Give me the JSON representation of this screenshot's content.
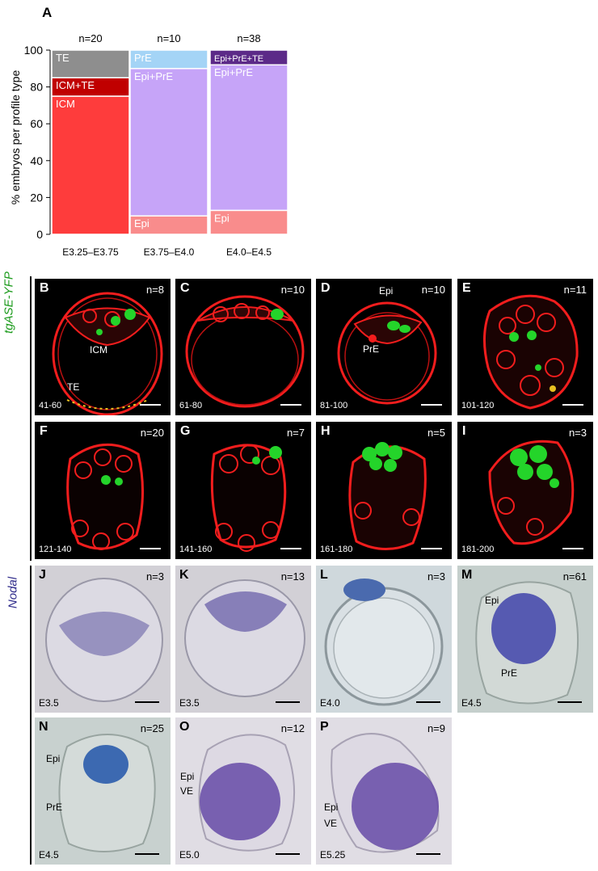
{
  "panel_a": {
    "letter": "A",
    "ylabel": "% embryos per profile type",
    "yticks": [
      "0",
      "20",
      "40",
      "60",
      "80",
      "100"
    ],
    "colors": {
      "TE": "#8e8e8e",
      "ICM+TE": "#c00000",
      "ICM": "#fe3c3c",
      "PrE": "#a4d4f6",
      "Epi+PrE": "#c6a4f8",
      "Epi": "#f98c8c",
      "Epi+PrE+TE": "#5c2a88"
    }
  },
  "chart_data": {
    "type": "bar",
    "stacked": true,
    "categories": [
      "E3.25–E3.75",
      "E3.75–E4.0",
      "E4.0–E4.5"
    ],
    "n_labels": [
      "n=20",
      "n=10",
      "n=38"
    ],
    "ylabel": "% embryos per profile type",
    "ylim": [
      0,
      100
    ],
    "grid": false,
    "series": [
      {
        "name": "ICM",
        "values": [
          75,
          0,
          0
        ],
        "color": "#fe3c3c"
      },
      {
        "name": "ICM+TE",
        "values": [
          10,
          0,
          0
        ],
        "color": "#c00000"
      },
      {
        "name": "TE",
        "values": [
          15,
          0,
          0
        ],
        "color": "#8e8e8e"
      },
      {
        "name": "Epi",
        "values": [
          0,
          10,
          13
        ],
        "color": "#f98c8c"
      },
      {
        "name": "Epi+PrE",
        "values": [
          0,
          80,
          79
        ],
        "color": "#c6a4f8"
      },
      {
        "name": "PrE",
        "values": [
          0,
          10,
          0
        ],
        "color": "#a4d4f6"
      },
      {
        "name": "Epi+PrE+TE",
        "values": [
          0,
          0,
          8
        ],
        "color": "#5c2a88"
      }
    ]
  },
  "side_labels": {
    "yfp": "tgASE-YFP",
    "nodal": "Nodal"
  },
  "yfp_panels": [
    {
      "letter": "B",
      "n": "n=8",
      "range": "41-60"
    },
    {
      "letter": "C",
      "n": "n=10",
      "range": "61-80"
    },
    {
      "letter": "D",
      "n": "n=10",
      "range": "81-100"
    },
    {
      "letter": "E",
      "n": "n=11",
      "range": "101-120"
    },
    {
      "letter": "F",
      "n": "n=20",
      "range": "121-140"
    },
    {
      "letter": "G",
      "n": "n=7",
      "range": "141-160"
    },
    {
      "letter": "H",
      "n": "n=5",
      "range": "161-180"
    },
    {
      "letter": "I",
      "n": "n=3",
      "range": "181-200"
    }
  ],
  "yfp_annotations": {
    "icm": "ICM",
    "te": "TE",
    "epi": "Epi",
    "pre": "PrE"
  },
  "nodal_panels": [
    {
      "letter": "J",
      "n": "n=3",
      "stage": "E3.5"
    },
    {
      "letter": "K",
      "n": "n=13",
      "stage": "E3.5"
    },
    {
      "letter": "L",
      "n": "n=3",
      "stage": "E4.0"
    },
    {
      "letter": "M",
      "n": "n=61",
      "stage": "E4.5"
    },
    {
      "letter": "N",
      "n": "n=25",
      "stage": "E4.5"
    },
    {
      "letter": "O",
      "n": "n=12",
      "stage": "E5.0"
    },
    {
      "letter": "P",
      "n": "n=9",
      "stage": "E5.25"
    }
  ],
  "nodal_annotations": {
    "epi": "Epi",
    "pre": "PrE",
    "ve": "VE"
  }
}
